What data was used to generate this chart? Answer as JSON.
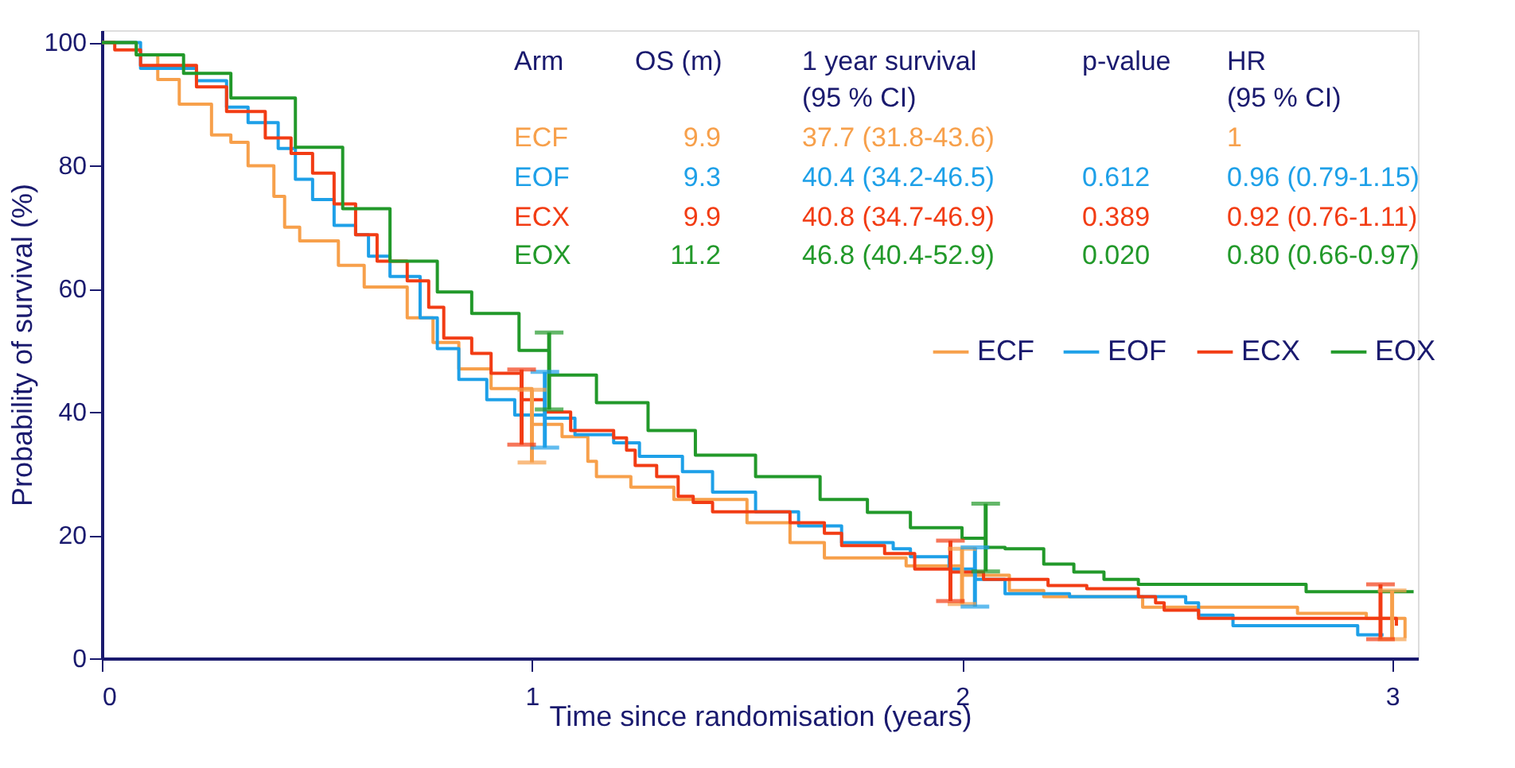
{
  "chart_data": {
    "type": "step",
    "xlabel": "Time since randomisation (years)",
    "ylabel": "Probability of survival (%)",
    "xlim": [
      0,
      3.06
    ],
    "ylim": [
      0,
      102
    ],
    "xticks": [
      0,
      1,
      2,
      3
    ],
    "yticks": [
      0,
      20,
      40,
      60,
      80,
      100
    ],
    "grid": false,
    "legend": "right",
    "marker": "none",
    "line_style": "solid",
    "series": [
      {
        "name": "ECF",
        "color": "#f7a04b",
        "x": [
          0,
          0.08,
          0.13,
          0.18,
          0.255,
          0.3,
          0.34,
          0.4,
          0.425,
          0.46,
          0.55,
          0.61,
          0.71,
          0.77,
          0.83,
          0.905,
          1.0,
          1.07,
          1.13,
          1.15,
          1.23,
          1.33,
          1.5,
          1.6,
          1.68,
          1.87,
          2.0,
          2.11,
          2.19,
          2.42,
          2.78,
          2.94,
          3.0,
          3.03
        ],
        "values": [
          100,
          98,
          94,
          90,
          85,
          83.8,
          80,
          75,
          70,
          67.8,
          63.8,
          60.3,
          55.3,
          51.3,
          47,
          43.8,
          38,
          36,
          32,
          29.5,
          27.8,
          25.8,
          22,
          18.8,
          16.3,
          15,
          13.5,
          11,
          10,
          8.3,
          7.3,
          6.5,
          6.5,
          3.3
        ],
        "errors": [
          null,
          null,
          null,
          null,
          null,
          null,
          null,
          null,
          null,
          null,
          null,
          null,
          null,
          null,
          null,
          null,
          [
            31.8,
            43.6
          ],
          null,
          null,
          null,
          null,
          null,
          null,
          null,
          null,
          null,
          [
            8.8,
            17.8
          ],
          null,
          null,
          null,
          null,
          null,
          [
            3.1,
            11
          ],
          null
        ]
      },
      {
        "name": "EOF",
        "color": "#1ea0e8",
        "x": [
          0,
          0.09,
          0.22,
          0.29,
          0.34,
          0.41,
          0.45,
          0.49,
          0.54,
          0.59,
          0.62,
          0.67,
          0.74,
          0.78,
          0.83,
          0.895,
          0.96,
          1.03,
          1.1,
          1.19,
          1.25,
          1.35,
          1.42,
          1.52,
          1.62,
          1.72,
          1.84,
          1.88,
          1.97,
          2.03,
          2.1,
          2.25,
          2.52,
          2.55,
          2.63,
          2.92,
          2.98
        ],
        "values": [
          100,
          95.8,
          93.8,
          89.5,
          87,
          82.8,
          77.8,
          74.5,
          70.3,
          68.8,
          65.3,
          62,
          55.3,
          50.3,
          45.3,
          42,
          39.5,
          39,
          36.3,
          35,
          32.8,
          30.3,
          27,
          23.8,
          21.5,
          18.8,
          17.8,
          16.5,
          14.5,
          12.8,
          10.5,
          10,
          9,
          7,
          5.3,
          3.8,
          3.8
        ],
        "errors": [
          null,
          null,
          null,
          null,
          null,
          null,
          null,
          null,
          null,
          null,
          null,
          null,
          null,
          null,
          null,
          null,
          null,
          [
            34.2,
            46.5
          ],
          null,
          null,
          null,
          null,
          null,
          null,
          null,
          null,
          null,
          null,
          null,
          [
            8.4,
            18
          ],
          null,
          null,
          null,
          null,
          null,
          null,
          null
        ]
      },
      {
        "name": "ECX",
        "color": "#f23c14",
        "x": [
          0,
          0.03,
          0.09,
          0.22,
          0.29,
          0.38,
          0.44,
          0.49,
          0.54,
          0.59,
          0.64,
          0.71,
          0.76,
          0.795,
          0.86,
          0.905,
          0.976,
          1.03,
          1.09,
          1.19,
          1.22,
          1.24,
          1.29,
          1.34,
          1.375,
          1.42,
          1.53,
          1.6,
          1.68,
          1.72,
          1.82,
          1.89,
          1.973,
          2.05,
          2.2,
          2.29,
          2.41,
          2.45,
          2.47,
          2.55,
          2.973,
          3.01
        ],
        "values": [
          100,
          98.8,
          96.3,
          92.8,
          88.8,
          84.5,
          82,
          78.8,
          73.8,
          68.8,
          64.5,
          61.3,
          57,
          52,
          49.5,
          46.3,
          42,
          40,
          37,
          35.8,
          33.8,
          31.3,
          29.5,
          26.3,
          25.3,
          23.8,
          23.8,
          22,
          20.3,
          18.3,
          17,
          14.5,
          14,
          12.8,
          11.8,
          11.3,
          10,
          9,
          7.8,
          6.5,
          6.5,
          5.3
        ],
        "errors": [
          null,
          null,
          null,
          null,
          null,
          null,
          null,
          null,
          null,
          null,
          null,
          null,
          null,
          null,
          null,
          null,
          [
            34.7,
            46.9
          ],
          null,
          null,
          null,
          null,
          null,
          null,
          null,
          null,
          null,
          null,
          null,
          null,
          null,
          null,
          null,
          [
            9.3,
            19.1
          ],
          null,
          null,
          null,
          null,
          null,
          null,
          null,
          [
            3.1,
            12
          ],
          null
        ]
      },
      {
        "name": "EOX",
        "color": "#22992a",
        "x": [
          0,
          0.08,
          0.19,
          0.3,
          0.45,
          0.56,
          0.67,
          0.78,
          0.86,
          0.97,
          1.04,
          1.15,
          1.27,
          1.38,
          1.52,
          1.67,
          1.78,
          1.88,
          2.0,
          2.055,
          2.1,
          2.19,
          2.26,
          2.33,
          2.41,
          2.79,
          2.8,
          3.05
        ],
        "values": [
          100,
          98,
          95,
          91,
          83,
          73,
          64.5,
          59.5,
          56,
          50,
          46,
          41.5,
          37,
          33,
          29.5,
          25.8,
          23.7,
          21.2,
          19.5,
          18,
          17.8,
          15.3,
          14,
          12.8,
          12,
          12,
          10.8,
          10.8
        ],
        "errors": [
          null,
          null,
          null,
          null,
          null,
          null,
          null,
          null,
          null,
          null,
          [
            40.4,
            52.9
          ],
          null,
          null,
          null,
          null,
          null,
          null,
          null,
          null,
          [
            14.1,
            25.1
          ],
          null,
          null,
          null,
          null,
          null,
          null,
          null,
          null
        ]
      }
    ],
    "annotations": [
      "Arm",
      "OS (m)",
      "1 year survival\n(95 % CI)",
      "p-value",
      "HR\n(95 % CI)",
      "ECF",
      "9.9",
      "37.7 (31.8-43.6)",
      "1",
      "EOF",
      "9.3",
      "40.4 (34.2-46.5)",
      "0.612",
      "0.96 (0.79-1.15)",
      "ECX",
      "9.9",
      "40.8 (34.7-46.9)",
      "0.389",
      "0.92  (0.76-1.11)",
      "EOX",
      "11.2",
      "46.8 (40.4-52.9)",
      "0.020",
      "0.80 (0.66-0.97)"
    ]
  }
}
